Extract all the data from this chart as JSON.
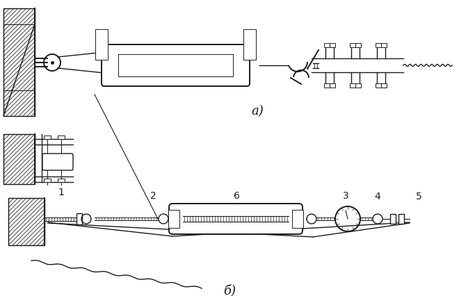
{
  "bg_color": "#ffffff",
  "line_color": "#1a1a1a",
  "label_a": "а)",
  "label_b": "б)",
  "fig_width": 6.6,
  "fig_height": 4.26,
  "dpi": 100
}
